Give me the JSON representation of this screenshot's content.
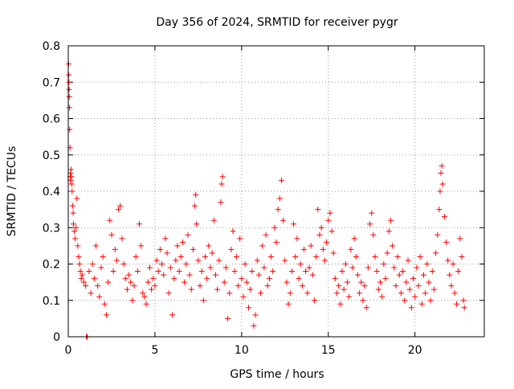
{
  "chart_data": {
    "type": "scatter",
    "title": "Day 356 of 2024, SRMTID for receiver pygr",
    "xlabel": "GPS time / hours",
    "ylabel": "SRMTID / TECUs",
    "xlim": [
      0,
      24
    ],
    "ylim": [
      0,
      0.8
    ],
    "x_ticks": [
      0,
      5,
      10,
      15,
      20
    ],
    "x_tick_labels": [
      "0",
      "5",
      "10",
      "15",
      "20"
    ],
    "y_ticks": [
      0,
      0.1,
      0.2,
      0.3,
      0.4,
      0.5,
      0.6,
      0.7,
      0.8
    ],
    "y_tick_labels": [
      "0",
      "0.1",
      "0.2",
      "0.3",
      "0.4",
      "0.5",
      "0.6",
      "0.7",
      "0.8"
    ],
    "grid": true,
    "marker": "+",
    "marker_color": "#ff0000",
    "series": [
      {
        "name": "SRMTID",
        "points": [
          [
            0.02,
            0.75
          ],
          [
            0.03,
            0.72
          ],
          [
            0.04,
            0.7
          ],
          [
            0.05,
            0.68
          ],
          [
            0.06,
            0.66
          ],
          [
            0.07,
            0.63
          ],
          [
            0.08,
            0.57
          ],
          [
            0.1,
            0.52
          ],
          [
            0.11,
            0.44
          ],
          [
            0.12,
            0.43
          ],
          [
            0.14,
            0.45
          ],
          [
            0.16,
            0.46
          ],
          [
            0.18,
            0.44
          ],
          [
            0.2,
            0.42
          ],
          [
            0.22,
            0.4
          ],
          [
            0.25,
            0.36
          ],
          [
            0.28,
            0.34
          ],
          [
            0.3,
            0.31
          ],
          [
            0.35,
            0.29
          ],
          [
            0.4,
            0.27
          ],
          [
            0.45,
            0.3
          ],
          [
            0.5,
            0.38
          ],
          [
            0.55,
            0.25
          ],
          [
            0.6,
            0.22
          ],
          [
            0.65,
            0.2
          ],
          [
            0.7,
            0.18
          ],
          [
            0.75,
            0.16
          ],
          [
            0.8,
            0.17
          ],
          [
            0.9,
            0.15
          ],
          [
            1.0,
            0.14
          ],
          [
            1.05,
            0.0
          ],
          [
            1.08,
            0.0
          ],
          [
            1.1,
            0.0
          ],
          [
            1.2,
            0.18
          ],
          [
            1.3,
            0.12
          ],
          [
            1.4,
            0.2
          ],
          [
            1.5,
            0.16
          ],
          [
            1.6,
            0.25
          ],
          [
            1.7,
            0.14
          ],
          [
            1.8,
            0.11
          ],
          [
            1.9,
            0.19
          ],
          [
            2.0,
            0.22
          ],
          [
            2.1,
            0.09
          ],
          [
            2.2,
            0.06
          ],
          [
            2.3,
            0.15
          ],
          [
            2.4,
            0.32
          ],
          [
            2.5,
            0.28
          ],
          [
            2.6,
            0.18
          ],
          [
            2.7,
            0.24
          ],
          [
            2.8,
            0.21
          ],
          [
            2.9,
            0.35
          ],
          [
            3.0,
            0.36
          ],
          [
            3.1,
            0.27
          ],
          [
            3.2,
            0.2
          ],
          [
            3.3,
            0.16
          ],
          [
            3.4,
            0.13
          ],
          [
            3.5,
            0.17
          ],
          [
            3.6,
            0.15
          ],
          [
            3.7,
            0.1
          ],
          [
            3.8,
            0.14
          ],
          [
            3.9,
            0.22
          ],
          [
            4.0,
            0.18
          ],
          [
            4.1,
            0.31
          ],
          [
            4.2,
            0.25
          ],
          [
            4.3,
            0.12
          ],
          [
            4.4,
            0.11
          ],
          [
            4.5,
            0.09
          ],
          [
            4.6,
            0.15
          ],
          [
            4.7,
            0.19
          ],
          [
            4.8,
            0.13
          ],
          [
            4.9,
            0.16
          ],
          [
            5.0,
            0.14
          ],
          [
            5.1,
            0.21
          ],
          [
            5.2,
            0.18
          ],
          [
            5.3,
            0.24
          ],
          [
            5.4,
            0.2
          ],
          [
            5.5,
            0.17
          ],
          [
            5.6,
            0.27
          ],
          [
            5.7,
            0.23
          ],
          [
            5.8,
            0.12
          ],
          [
            5.9,
            0.19
          ],
          [
            6.0,
            0.06
          ],
          [
            6.1,
            0.16
          ],
          [
            6.2,
            0.21
          ],
          [
            6.3,
            0.25
          ],
          [
            6.4,
            0.18
          ],
          [
            6.5,
            0.22
          ],
          [
            6.6,
            0.26
          ],
          [
            6.7,
            0.15
          ],
          [
            6.8,
            0.2
          ],
          [
            6.9,
            0.28
          ],
          [
            7.0,
            0.17
          ],
          [
            7.1,
            0.13
          ],
          [
            7.2,
            0.24
          ],
          [
            7.3,
            0.36
          ],
          [
            7.35,
            0.39
          ],
          [
            7.4,
            0.31
          ],
          [
            7.5,
            0.21
          ],
          [
            7.6,
            0.14
          ],
          [
            7.7,
            0.18
          ],
          [
            7.8,
            0.1
          ],
          [
            7.9,
            0.22
          ],
          [
            8.0,
            0.16
          ],
          [
            8.1,
            0.25
          ],
          [
            8.2,
            0.19
          ],
          [
            8.3,
            0.23
          ],
          [
            8.4,
            0.32
          ],
          [
            8.5,
            0.17
          ],
          [
            8.6,
            0.13
          ],
          [
            8.7,
            0.21
          ],
          [
            8.8,
            0.37
          ],
          [
            8.85,
            0.42
          ],
          [
            8.9,
            0.44
          ],
          [
            9.0,
            0.15
          ],
          [
            9.1,
            0.19
          ],
          [
            9.2,
            0.05
          ],
          [
            9.3,
            0.12
          ],
          [
            9.4,
            0.24
          ],
          [
            9.5,
            0.29
          ],
          [
            9.6,
            0.18
          ],
          [
            9.7,
            0.22
          ],
          [
            9.8,
            0.14
          ],
          [
            9.9,
            0.27
          ],
          [
            10.0,
            0.16
          ],
          [
            10.1,
            0.11
          ],
          [
            10.2,
            0.2
          ],
          [
            10.3,
            0.15
          ],
          [
            10.4,
            0.08
          ],
          [
            10.5,
            0.13
          ],
          [
            10.6,
            0.18
          ],
          [
            10.7,
            0.03
          ],
          [
            10.8,
            0.06
          ],
          [
            10.9,
            0.21
          ],
          [
            11.0,
            0.17
          ],
          [
            11.1,
            0.12
          ],
          [
            11.2,
            0.25
          ],
          [
            11.3,
            0.19
          ],
          [
            11.4,
            0.28
          ],
          [
            11.5,
            0.14
          ],
          [
            11.6,
            0.16
          ],
          [
            11.7,
            0.22
          ],
          [
            11.8,
            0.18
          ],
          [
            11.9,
            0.3
          ],
          [
            12.0,
            0.26
          ],
          [
            12.1,
            0.35
          ],
          [
            12.2,
            0.38
          ],
          [
            12.3,
            0.43
          ],
          [
            12.4,
            0.32
          ],
          [
            12.5,
            0.21
          ],
          [
            12.6,
            0.15
          ],
          [
            12.7,
            0.09
          ],
          [
            12.8,
            0.12
          ],
          [
            12.9,
            0.18
          ],
          [
            13.0,
            0.31
          ],
          [
            13.1,
            0.22
          ],
          [
            13.2,
            0.27
          ],
          [
            13.3,
            0.16
          ],
          [
            13.4,
            0.2
          ],
          [
            13.5,
            0.14
          ],
          [
            13.6,
            0.24
          ],
          [
            13.7,
            0.18
          ],
          [
            13.8,
            0.12
          ],
          [
            13.9,
            0.19
          ],
          [
            14.0,
            0.25
          ],
          [
            14.1,
            0.17
          ],
          [
            14.2,
            0.1
          ],
          [
            14.3,
            0.22
          ],
          [
            14.4,
            0.35
          ],
          [
            14.5,
            0.28
          ],
          [
            14.6,
            0.3
          ],
          [
            14.7,
            0.24
          ],
          [
            14.8,
            0.21
          ],
          [
            14.9,
            0.26
          ],
          [
            15.0,
            0.32
          ],
          [
            15.1,
            0.34
          ],
          [
            15.2,
            0.29
          ],
          [
            15.3,
            0.23
          ],
          [
            15.4,
            0.16
          ],
          [
            15.5,
            0.12
          ],
          [
            15.6,
            0.14
          ],
          [
            15.7,
            0.09
          ],
          [
            15.8,
            0.18
          ],
          [
            15.9,
            0.13
          ],
          [
            16.0,
            0.2
          ],
          [
            16.1,
            0.15
          ],
          [
            16.2,
            0.11
          ],
          [
            16.3,
            0.24
          ],
          [
            16.4,
            0.19
          ],
          [
            16.5,
            0.27
          ],
          [
            16.6,
            0.22
          ],
          [
            16.7,
            0.17
          ],
          [
            16.8,
            0.12
          ],
          [
            16.9,
            0.15
          ],
          [
            17.0,
            0.1
          ],
          [
            17.1,
            0.14
          ],
          [
            17.2,
            0.08
          ],
          [
            17.3,
            0.19
          ],
          [
            17.4,
            0.31
          ],
          [
            17.5,
            0.34
          ],
          [
            17.6,
            0.28
          ],
          [
            17.7,
            0.22
          ],
          [
            17.8,
            0.18
          ],
          [
            17.9,
            0.13
          ],
          [
            18.0,
            0.15
          ],
          [
            18.1,
            0.11
          ],
          [
            18.2,
            0.2
          ],
          [
            18.3,
            0.16
          ],
          [
            18.4,
            0.23
          ],
          [
            18.5,
            0.29
          ],
          [
            18.6,
            0.32
          ],
          [
            18.7,
            0.25
          ],
          [
            18.8,
            0.19
          ],
          [
            18.9,
            0.14
          ],
          [
            19.0,
            0.22
          ],
          [
            19.1,
            0.17
          ],
          [
            19.2,
            0.12
          ],
          [
            19.3,
            0.18
          ],
          [
            19.4,
            0.1
          ],
          [
            19.5,
            0.15
          ],
          [
            19.6,
            0.21
          ],
          [
            19.7,
            0.13
          ],
          [
            19.8,
            0.08
          ],
          [
            19.9,
            0.16
          ],
          [
            20.0,
            0.11
          ],
          [
            20.1,
            0.19
          ],
          [
            20.2,
            0.14
          ],
          [
            20.3,
            0.22
          ],
          [
            20.4,
            0.09
          ],
          [
            20.5,
            0.17
          ],
          [
            20.6,
            0.12
          ],
          [
            20.7,
            0.2
          ],
          [
            20.8,
            0.15
          ],
          [
            20.9,
            0.1
          ],
          [
            21.0,
            0.18
          ],
          [
            21.1,
            0.13
          ],
          [
            21.2,
            0.23
          ],
          [
            21.3,
            0.28
          ],
          [
            21.4,
            0.35
          ],
          [
            21.45,
            0.4
          ],
          [
            21.5,
            0.45
          ],
          [
            21.55,
            0.47
          ],
          [
            21.6,
            0.42
          ],
          [
            21.7,
            0.33
          ],
          [
            21.8,
            0.26
          ],
          [
            21.9,
            0.21
          ],
          [
            22.0,
            0.17
          ],
          [
            22.1,
            0.14
          ],
          [
            22.2,
            0.2
          ],
          [
            22.3,
            0.12
          ],
          [
            22.4,
            0.09
          ],
          [
            22.5,
            0.18
          ],
          [
            22.6,
            0.27
          ],
          [
            22.7,
            0.22
          ],
          [
            22.8,
            0.1
          ],
          [
            22.85,
            0.08
          ]
        ]
      }
    ]
  }
}
